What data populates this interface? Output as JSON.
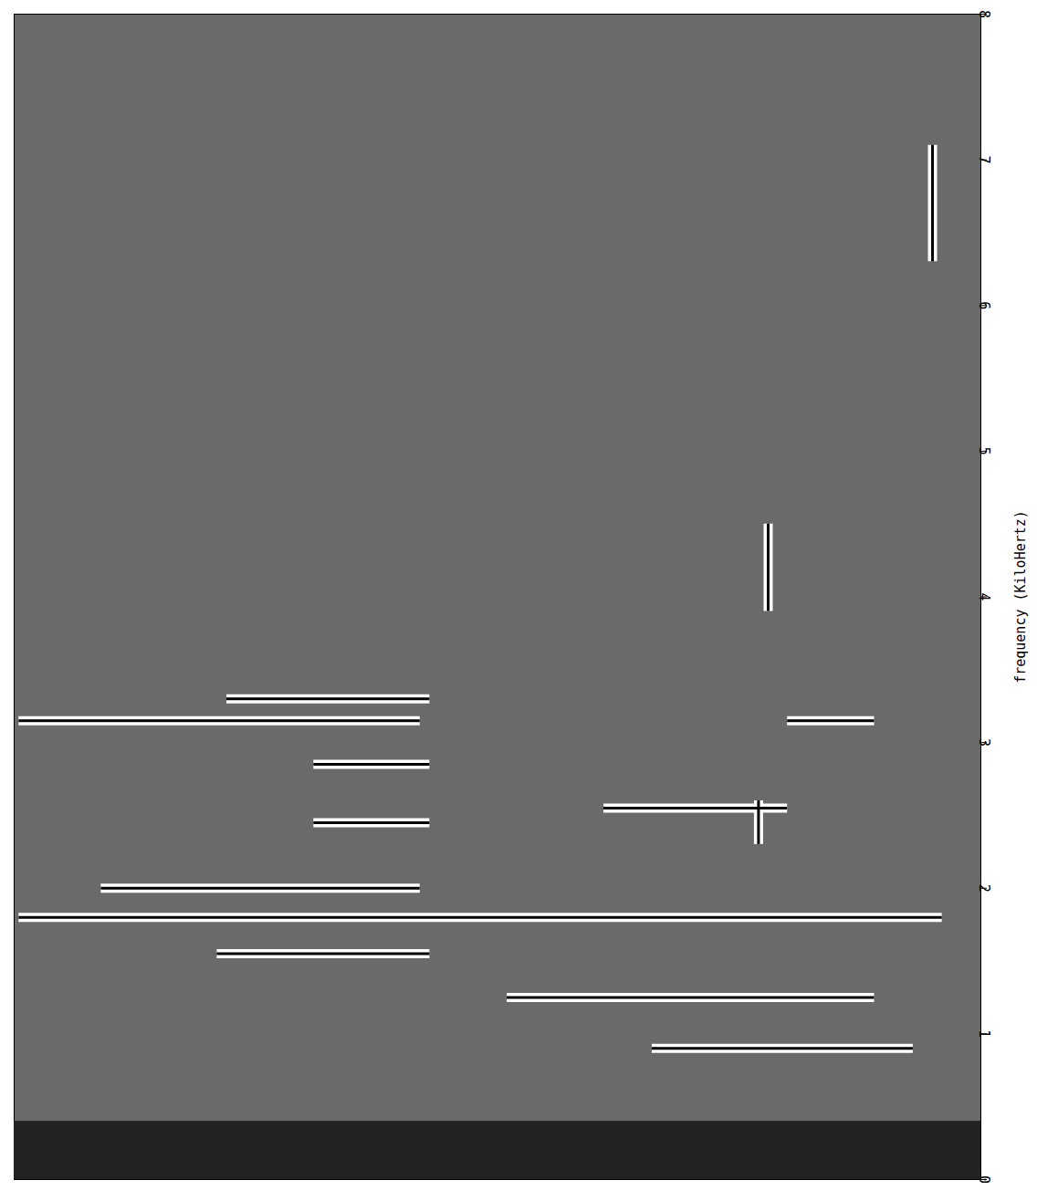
{
  "chart_data": {
    "type": "waterfall",
    "y_label": "frequency (KiloHertz)",
    "ylim": [
      0,
      8
    ],
    "yticks": [
      0,
      1,
      2,
      3,
      4,
      5,
      6,
      7,
      8
    ],
    "xlim": [
      0,
      100
    ],
    "tick_labels": "y",
    "grid": false,
    "color": "#000000",
    "noise_band": [
      0,
      0.4
    ],
    "peaks": [
      {
        "frequency": 3.15,
        "start": 0.5,
        "end": 42
      },
      {
        "frequency": 3.3,
        "start": 22,
        "end": 43
      },
      {
        "frequency": 2.85,
        "start": 31,
        "end": 43
      },
      {
        "frequency": 2.45,
        "start": 31,
        "end": 43
      },
      {
        "frequency": 2.0,
        "start": 9,
        "end": 42
      },
      {
        "frequency": 1.8,
        "start": 0.5,
        "end": 96
      },
      {
        "frequency": 1.55,
        "start": 21,
        "end": 43
      },
      {
        "frequency": 1.25,
        "start": 51,
        "end": 89
      },
      {
        "frequency": 0.9,
        "start": 66,
        "end": 93
      },
      {
        "frequency": 3.15,
        "start": 80,
        "end": 89
      },
      {
        "frequency": 2.55,
        "start": 61,
        "end": 80
      }
    ],
    "bands": [
      {
        "trace": 78,
        "from": 3.9,
        "to": 4.5
      },
      {
        "trace": 77,
        "from": 2.3,
        "to": 2.6
      },
      {
        "trace": 95,
        "from": 6.3,
        "to": 7.1
      }
    ]
  }
}
